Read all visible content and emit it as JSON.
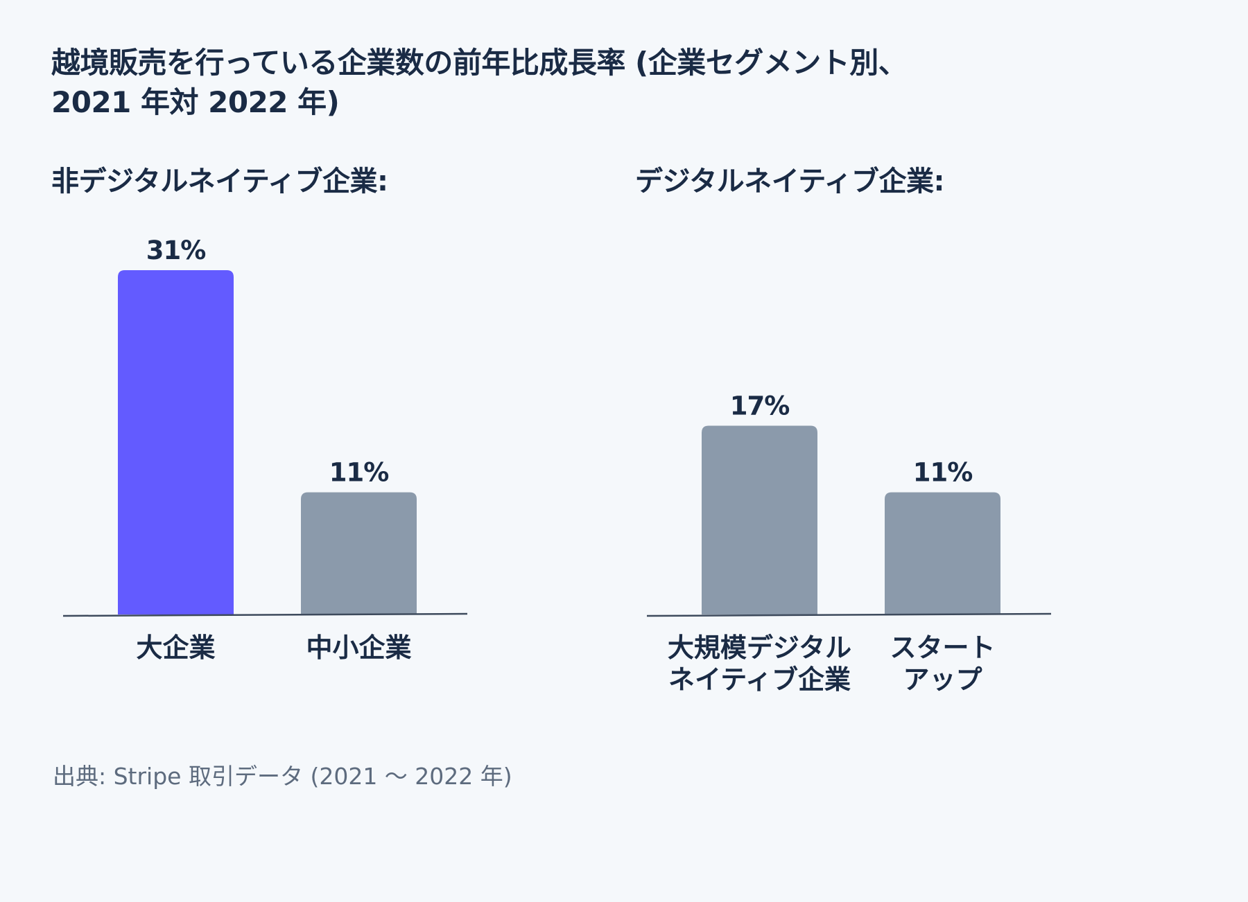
{
  "title_lines": [
    "越境販売を行っている企業数の前年比成長率 (企業セグメント別、",
    "2021 年対 2022 年)"
  ],
  "source": "出典: Stripe 取引データ (2021 ～ 2022 年)",
  "colors": {
    "highlight": "#635bff",
    "default": "#8b9aab",
    "baseline": "#3d4a5c",
    "text": "#1a2b45"
  },
  "chart_data": [
    {
      "type": "bar",
      "title": "非デジタルネイティブ企業:",
      "categories": [
        [
          "大企業"
        ],
        [
          "中小企業"
        ]
      ],
      "values": [
        31,
        11
      ],
      "value_labels": [
        "31%",
        "11%"
      ],
      "unit": "%",
      "highlight_index": 0,
      "ylim": [
        0,
        31
      ]
    },
    {
      "type": "bar",
      "title": "デジタルネイティブ企業:",
      "categories": [
        [
          "大規模デジタル",
          "ネイティブ企業"
        ],
        [
          "スタート",
          "アップ"
        ]
      ],
      "values": [
        17,
        11
      ],
      "value_labels": [
        "17%",
        "11%"
      ],
      "unit": "%",
      "highlight_index": -1,
      "ylim": [
        0,
        31
      ]
    }
  ]
}
